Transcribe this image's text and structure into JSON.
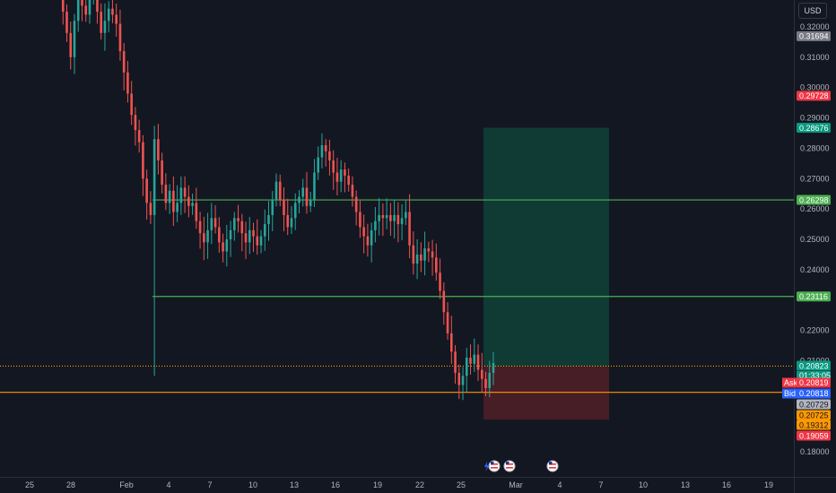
{
  "currency_label": "USD",
  "chart_data": {
    "type": "candlestick",
    "y_axis": {
      "ticks": [
        "0.32000",
        "0.31000",
        "0.30000",
        "0.29000",
        "0.28000",
        "0.27000",
        "0.26000",
        "0.25000",
        "0.24000",
        "0.22000",
        "0.21000",
        "0.18000"
      ],
      "range": [
        0.176,
        0.322
      ]
    },
    "x_axis": {
      "ticks": [
        "25",
        "28",
        "Feb",
        "4",
        "7",
        "10",
        "13",
        "16",
        "19",
        "22",
        "25",
        "Mar",
        "4",
        "7",
        "10",
        "13",
        "16",
        "19"
      ]
    },
    "candles_close_path": [
      0.334,
      0.325,
      0.318,
      0.31,
      0.322,
      0.329,
      0.327,
      0.324,
      0.33,
      0.334,
      0.325,
      0.318,
      0.322,
      0.326,
      0.324,
      0.321,
      0.312,
      0.305,
      0.298,
      0.291,
      0.286,
      0.282,
      0.27,
      0.262,
      0.258,
      0.283,
      0.276,
      0.268,
      0.262,
      0.266,
      0.259,
      0.262,
      0.267,
      0.264,
      0.261,
      0.262,
      0.256,
      0.252,
      0.249,
      0.253,
      0.257,
      0.254,
      0.249,
      0.246,
      0.25,
      0.253,
      0.257,
      0.256,
      0.252,
      0.249,
      0.253,
      0.251,
      0.248,
      0.251,
      0.255,
      0.258,
      0.263,
      0.269,
      0.263,
      0.258,
      0.254,
      0.257,
      0.262,
      0.264,
      0.267,
      0.261,
      0.263,
      0.272,
      0.277,
      0.281,
      0.279,
      0.276,
      0.272,
      0.269,
      0.273,
      0.271,
      0.268,
      0.264,
      0.259,
      0.254,
      0.251,
      0.248,
      0.253,
      0.256,
      0.258,
      0.257,
      0.258,
      0.256,
      0.258,
      0.255,
      0.257,
      0.259,
      0.248,
      0.242,
      0.245,
      0.243,
      0.247,
      0.246,
      0.244,
      0.239,
      0.233,
      0.226,
      0.219,
      0.213,
      0.206,
      0.202,
      0.205,
      0.211,
      0.209,
      0.212,
      0.207,
      0.204,
      0.201,
      0.206,
      0.2092
    ],
    "horizontal_lines": [
      {
        "price": 0.26298,
        "color": "#4caf50"
      },
      {
        "price": 0.23116,
        "color": "#4caf50"
      },
      {
        "price": 0.20823,
        "color": "#ff9800",
        "style": "dotted"
      },
      {
        "price": 0.19959,
        "color": "#ff9800"
      }
    ],
    "position_tool": {
      "entry": 0.20823,
      "target": 0.28676,
      "stop": 0.19059,
      "profit_color": "#0f3d36",
      "loss_color": "#4a1e27"
    },
    "price_tags": [
      {
        "label": "0.31694",
        "price": 0.31694,
        "bg": "#787b86",
        "fg": "#ffffff"
      },
      {
        "label": "0.29728",
        "price": 0.29728,
        "bg": "#f23645",
        "fg": "#ffffff"
      },
      {
        "label": "0.28676",
        "price": 0.28676,
        "bg": "#089981",
        "fg": "#ffffff"
      },
      {
        "label": "0.26298",
        "price": 0.26298,
        "bg": "#4caf50",
        "fg": "#ffffff"
      },
      {
        "label": "0.23116",
        "price": 0.23116,
        "bg": "#4caf50",
        "fg": "#ffffff"
      },
      {
        "label": "0.20823",
        "price": 0.20823,
        "bg": "#089981",
        "fg": "#ffffff"
      },
      {
        "label": "0.20729",
        "price": 0.20729,
        "bg": "#b2b5be",
        "fg": "#131722"
      },
      {
        "label": "0.20725",
        "price": 0.20725,
        "bg": "#ff9800",
        "fg": "#131722"
      },
      {
        "label": "0.19312",
        "price": 0.19312,
        "bg": "#ff9800",
        "fg": "#131722"
      },
      {
        "label": "0.19059",
        "price": 0.19059,
        "bg": "#f23645",
        "fg": "#ffffff"
      }
    ],
    "countdown": "01:33:05",
    "ask": {
      "label": "Ask",
      "value": "0.20819",
      "color": "#f23645"
    },
    "bid": {
      "label": "Bid",
      "value": "0.20818",
      "color": "#2962ff"
    }
  }
}
